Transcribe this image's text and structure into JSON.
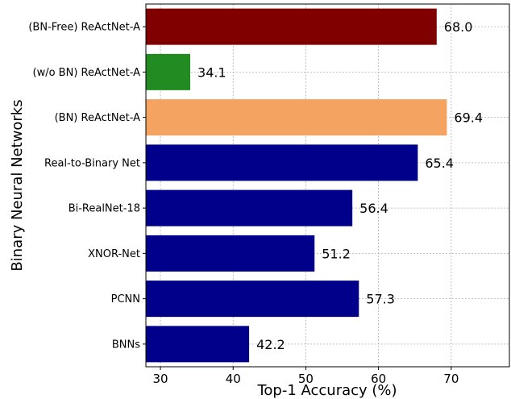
{
  "chart_data": {
    "type": "bar",
    "orientation": "horizontal",
    "categories": [
      "BNNs",
      "PCNN",
      "XNOR-Net",
      "Bi-RealNet-18",
      "Real-to-Binary Net",
      "(BN) ReActNet-A",
      "(w/o BN) ReActNet-A",
      "(BN-Free) ReActNet-A"
    ],
    "values": [
      42.2,
      57.3,
      51.2,
      56.4,
      65.4,
      69.4,
      34.1,
      68.0
    ],
    "value_labels": [
      "42.2",
      "57.3",
      "51.2",
      "56.4",
      "65.4",
      "69.4",
      "34.1",
      "68.0"
    ],
    "bar_colors": [
      "#00008b",
      "#00008b",
      "#00008b",
      "#00008b",
      "#00008b",
      "#f4a460",
      "#228b22",
      "#800000"
    ],
    "xlabel": "Top-1 Accuracy (%)",
    "ylabel": "Binary Neural Networks",
    "xlim": [
      28,
      78
    ],
    "xticks": [
      30,
      40,
      50,
      60,
      70
    ],
    "grid": true,
    "grid_style": "dotted"
  }
}
